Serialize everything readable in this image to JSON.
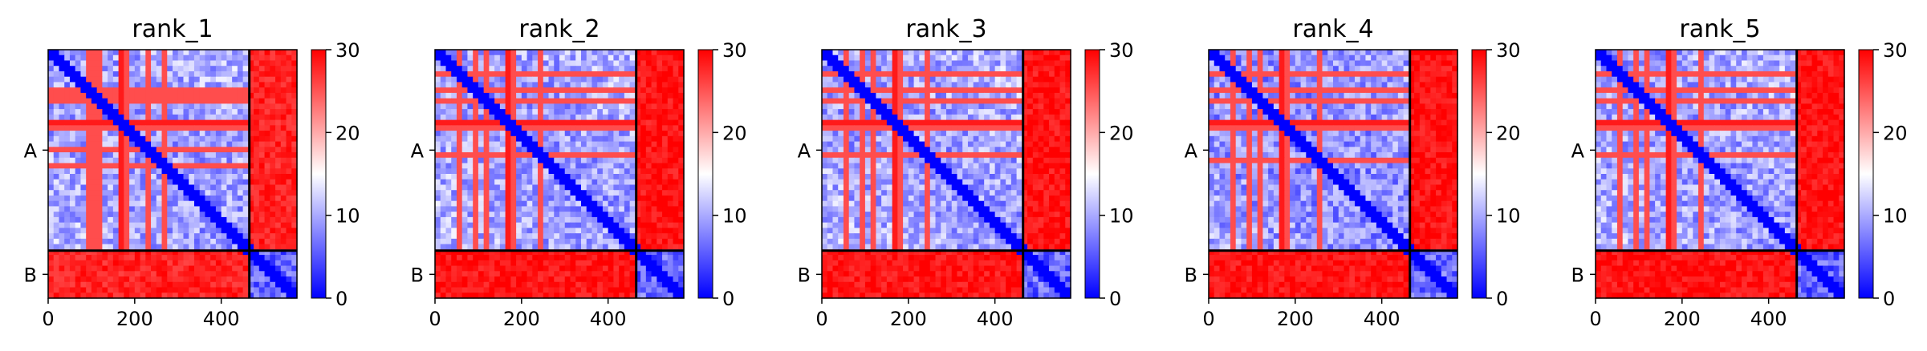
{
  "chart_data": [
    {
      "type": "heatmap",
      "title": "rank_1",
      "x_ticks": [
        0,
        200,
        400
      ],
      "xlim": [
        0,
        575
      ],
      "y_tick_labels": [
        "A",
        "B"
      ],
      "chain_boundary": 465,
      "total_length": 575,
      "colorbar": {
        "min": 0,
        "max": 30,
        "ticks": [
          0,
          10,
          20,
          30
        ],
        "colormap": [
          "#0000ff",
          "#ffffff",
          "#ff0000"
        ]
      },
      "red_bands": [
        95,
        110,
        120,
        172,
        185,
        232,
        272
      ],
      "vertical_red_band": 172,
      "c_block_level": 28,
      "a_block_level": 9
    },
    {
      "type": "heatmap",
      "title": "rank_2",
      "x_ticks": [
        0,
        200,
        400
      ],
      "xlim": [
        0,
        575
      ],
      "y_tick_labels": [
        "A",
        "B"
      ],
      "chain_boundary": 465,
      "total_length": 575,
      "colorbar": {
        "min": 0,
        "max": 30,
        "ticks": [
          0,
          10,
          20,
          30
        ],
        "colormap": [
          "#0000ff",
          "#ffffff",
          "#ff0000"
        ]
      },
      "red_bands": [
        60,
        95,
        120,
        172,
        185,
        240
      ],
      "vertical_red_band": 172,
      "c_block_level": 29,
      "a_block_level": 9
    },
    {
      "type": "heatmap",
      "title": "rank_3",
      "x_ticks": [
        0,
        200,
        400
      ],
      "xlim": [
        0,
        575
      ],
      "y_tick_labels": [
        "A",
        "B"
      ],
      "chain_boundary": 465,
      "total_length": 575,
      "colorbar": {
        "min": 0,
        "max": 30,
        "ticks": [
          0,
          10,
          20,
          30
        ],
        "colormap": [
          "#0000ff",
          "#ffffff",
          "#ff0000"
        ]
      },
      "red_bands": [
        60,
        95,
        120,
        172,
        185,
        240
      ],
      "vertical_red_band": 172,
      "c_block_level": 29,
      "a_block_level": 9
    },
    {
      "type": "heatmap",
      "title": "rank_4",
      "x_ticks": [
        0,
        200,
        400
      ],
      "xlim": [
        0,
        575
      ],
      "y_tick_labels": [
        "A",
        "B"
      ],
      "chain_boundary": 465,
      "total_length": 575,
      "colorbar": {
        "min": 0,
        "max": 30,
        "ticks": [
          0,
          10,
          20,
          30
        ],
        "colormap": [
          "#0000ff",
          "#ffffff",
          "#ff0000"
        ]
      },
      "red_bands": [
        60,
        95,
        120,
        172,
        185,
        255
      ],
      "vertical_red_band": 172,
      "c_block_level": 29,
      "a_block_level": 8
    },
    {
      "type": "heatmap",
      "title": "rank_5",
      "x_ticks": [
        0,
        200,
        400
      ],
      "xlim": [
        0,
        575
      ],
      "y_tick_labels": [
        "A",
        "B"
      ],
      "chain_boundary": 465,
      "total_length": 575,
      "colorbar": {
        "min": 0,
        "max": 30,
        "ticks": [
          0,
          10,
          20,
          30
        ],
        "colormap": [
          "#0000ff",
          "#ffffff",
          "#ff0000"
        ]
      },
      "red_bands": [
        60,
        95,
        120,
        172,
        185,
        240
      ],
      "vertical_red_band": 172,
      "c_block_level": 29,
      "a_block_level": 9
    }
  ]
}
